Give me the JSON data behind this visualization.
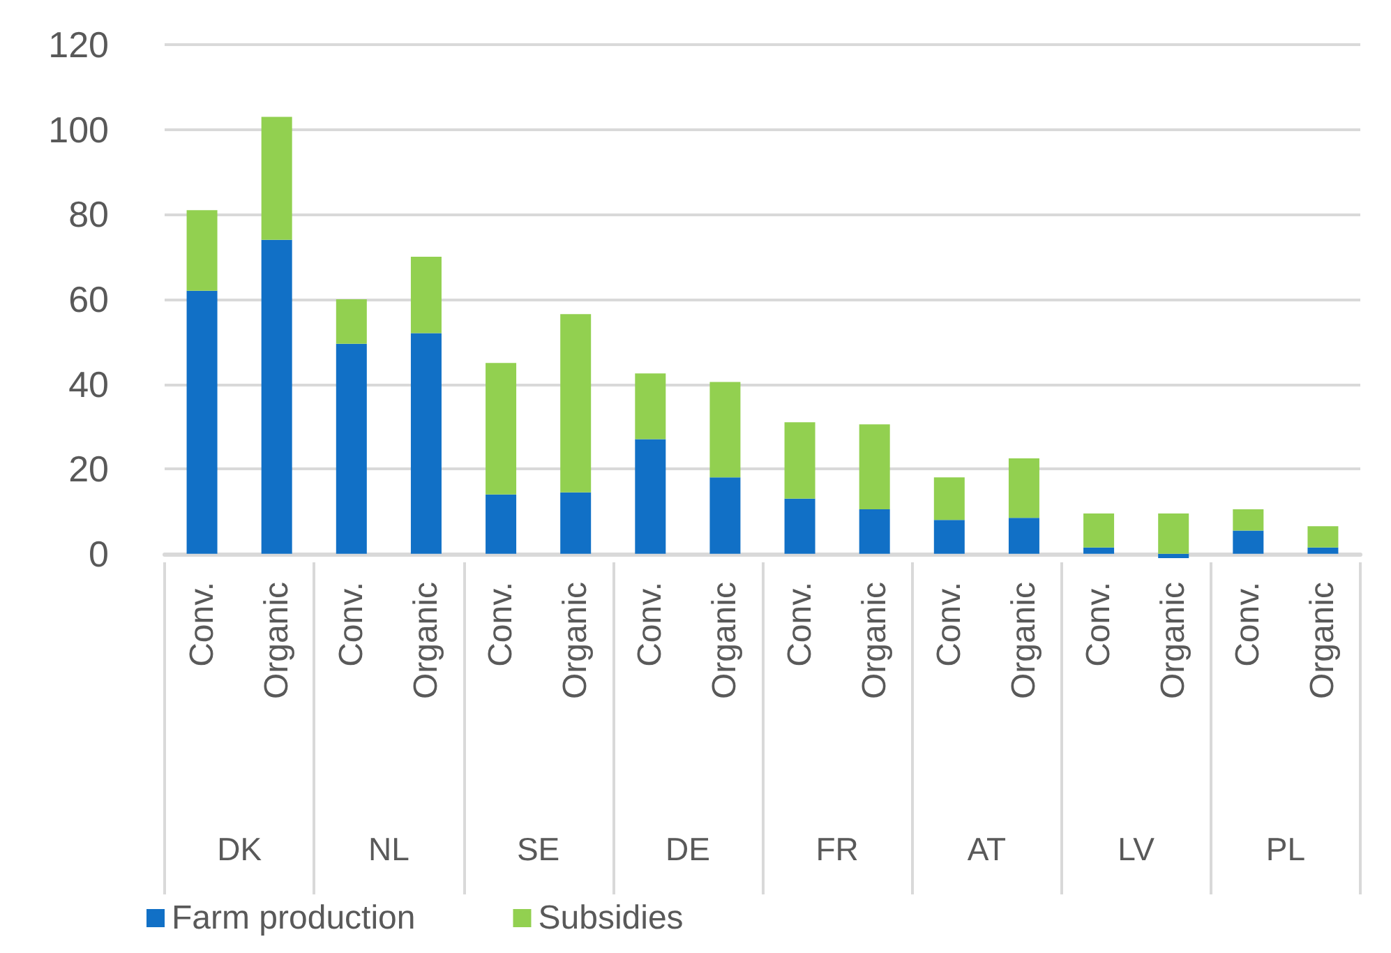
{
  "chart_data": {
    "type": "bar",
    "stacked": true,
    "categories": [
      "Conv.",
      "Organic",
      "Conv.",
      "Organic",
      "Conv.",
      "Organic",
      "Conv.",
      "Organic",
      "Conv.",
      "Organic",
      "Conv.",
      "Organic",
      "Conv.",
      "Organic",
      "Conv.",
      "Organic"
    ],
    "series": [
      {
        "name": "Farm production",
        "color": "#1170c6",
        "values": [
          62,
          74,
          49.5,
          52,
          14,
          14.5,
          27,
          18,
          13,
          10.5,
          8,
          8.5,
          1.5,
          -1,
          5.5,
          1.5
        ]
      },
      {
        "name": "Subsidies",
        "color": "#92d050",
        "values": [
          19,
          29,
          10.5,
          18,
          31,
          42,
          15.5,
          22.5,
          18,
          20,
          10,
          14,
          8,
          9.5,
          5,
          5
        ]
      }
    ],
    "annotations": [
      "DK",
      "NL",
      "SE",
      "DE",
      "FR",
      "AT",
      "LV",
      "PL"
    ],
    "ylim": [
      -2,
      120
    ],
    "yticks": [
      0,
      20,
      40,
      60,
      80,
      100,
      120
    ],
    "grid": "y",
    "legend": "bottom left"
  }
}
